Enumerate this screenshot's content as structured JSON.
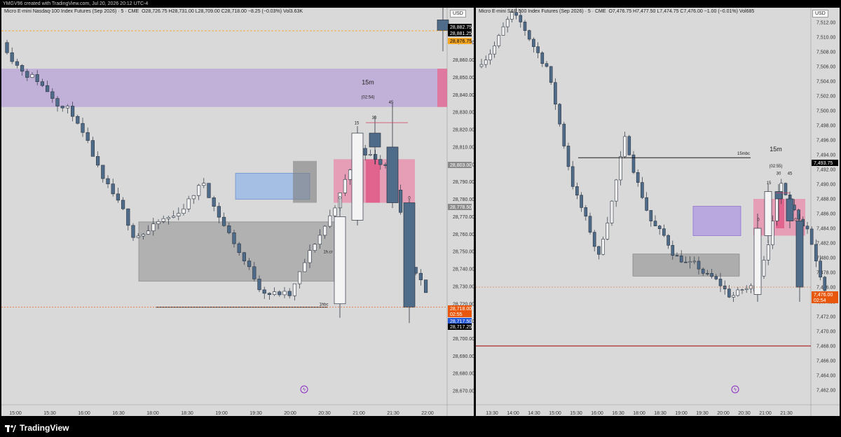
{
  "header": {
    "created": "YMGV96 created with TradingView.com, Jul 20, 2026 20:12 UTC-4"
  },
  "brand": {
    "name": "TradingView"
  },
  "left": {
    "symbol": "Micro E-mini Nasdaq-100 Index Futures (Sep 2026) · 5 · CME",
    "ohlc": "O28,726.75  H28,731.00  L28,709.00  C28,718.00  −8.25 (−0.03%)  Vol3.63K",
    "currency": "USD",
    "ymin": 28662,
    "ymax": 28890,
    "yticks": [
      "28,670.00",
      "28,680.00",
      "28,690.00",
      "28,700.00",
      "28,710.00",
      "28,720.00",
      "28,730.00",
      "28,740.00",
      "28,750.00",
      "28,760.00",
      "28,770.00",
      "28,780.00",
      "28,790.00",
      "28,800.00",
      "28,810.00",
      "28,820.00",
      "28,830.00",
      "28,840.00",
      "28,850.00",
      "28,860.00",
      "28,870.00"
    ],
    "xticks": [
      "15:00",
      "15:30",
      "16:00",
      "16:30",
      "18:00",
      "18:30",
      "19:00",
      "19:30",
      "20:00",
      "20:30",
      "21:00",
      "21:30",
      "22:00"
    ],
    "price_labels": [
      {
        "text": "28,882.75",
        "color": "#000000",
        "fg": "#ffffff"
      },
      {
        "text": "28,881.25",
        "color": "#000000",
        "fg": "#ffffff"
      },
      {
        "text": "28,876.75",
        "color": "#f5a623",
        "fg": "#000000"
      },
      {
        "text": "28,803.00",
        "color": "#8a8a8a",
        "fg": "#ffffff"
      },
      {
        "text": "28,778.50",
        "color": "#8a8a8a",
        "fg": "#ffffff"
      },
      {
        "text": "28,718.00",
        "color": "#e8570b",
        "fg": "#ffffff"
      },
      {
        "text": "02:55",
        "color": "#e8570b",
        "fg": "#ffffff"
      },
      {
        "text": "28,717.50",
        "color": "#2457d6",
        "fg": "#ffffff"
      },
      {
        "text": "28,717.25",
        "color": "#000000",
        "fg": "#ffffff"
      }
    ],
    "annotations": {
      "tf": "15m",
      "countdown": "(02:54)",
      "l15": "15",
      "l30": "30",
      "l45": "45",
      "z1": "0",
      "z2": "0",
      "nbc": "1hbc",
      "zone_mid": "1h.cr"
    }
  },
  "right": {
    "symbol": "Micro E-mini S&P 500 Index Futures (Sep 2026) · 5 · CME",
    "ohlc": "O7,476.75  H7,477.50  L7,474.75  C7,476.00  −1.00 (−0.01%)  Vol685",
    "currency": "USD",
    "ymin": 7460,
    "ymax": 7514,
    "yticks": [
      "7,462.00",
      "7,464.00",
      "7,466.00",
      "7,468.00",
      "7,470.00",
      "7,472.00",
      "7,474.00",
      "7,476.00",
      "7,478.00",
      "7,480.00",
      "7,482.00",
      "7,484.00",
      "7,486.00",
      "7,488.00",
      "7,490.00",
      "7,492.00",
      "7,494.00",
      "7,496.00",
      "7,498.00",
      "7,500.00",
      "7,502.00",
      "7,504.00",
      "7,506.00",
      "7,508.00",
      "7,510.00",
      "7,512.00"
    ],
    "xticks": [
      "13:30",
      "14:00",
      "14:30",
      "15:00",
      "15:30",
      "16:00",
      "16:30",
      "18:00",
      "18:30",
      "19:00",
      "19:30",
      "20:00",
      "20:30",
      "21:00",
      "21:30"
    ],
    "price_labels": [
      {
        "text": "7,493.75",
        "color": "#000000",
        "fg": "#ffffff"
      },
      {
        "text": "7,476.00",
        "color": "#e8570b",
        "fg": "#ffffff"
      },
      {
        "text": "02:54",
        "color": "#e8570b",
        "fg": "#ffffff"
      }
    ],
    "annotations": {
      "tf": "15m",
      "countdown": "(02:55)",
      "l15": "15",
      "l30": "30",
      "l45": "45",
      "z1": "0",
      "z2": "0",
      "nbc": "15mbc"
    }
  }
}
